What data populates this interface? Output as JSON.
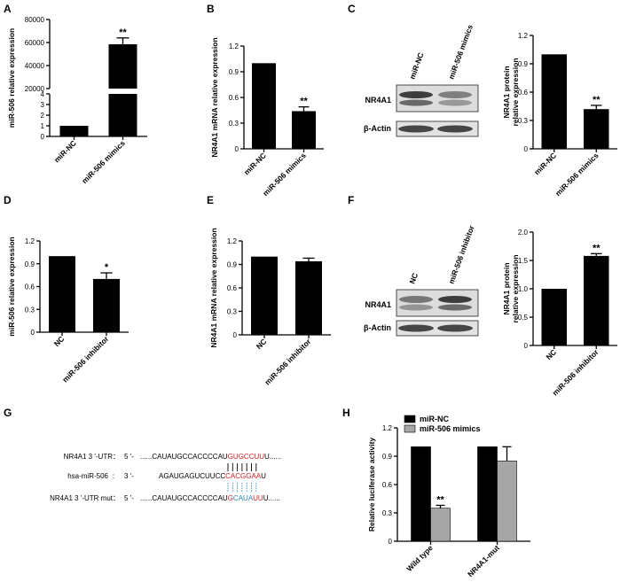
{
  "panel_letters": [
    "A",
    "B",
    "C",
    "D",
    "E",
    "F",
    "G",
    "H"
  ],
  "colors": {
    "bar": "#000000",
    "mimics_bar": "#a6a6a6",
    "seed_red": "#d62020",
    "mut_blue": "#2e86c1"
  },
  "blots": {
    "C": {
      "lanes": [
        "miR-NC",
        "miR-506 mimics"
      ],
      "bands": [
        "NR4A1",
        "β-Actin"
      ]
    },
    "F": {
      "lanes": [
        "NC",
        "miR-506 inhibitor"
      ],
      "bands": [
        "NR4A1",
        "β-Actin"
      ]
    }
  },
  "sequences": {
    "rows": [
      {
        "label": "NR4A1 3 '-UTR：",
        "prime": "5 '-",
        "pre": "......CAUAUGCCACCCCAU",
        "hl": "GUGCCUU",
        "post": "U......"
      },
      {
        "label": "hsa-miR-506",
        "prime": "3 '-",
        "pre": "AGAUGAGUCUUCC",
        "hl": "CACGGAA",
        "post": "U"
      },
      {
        "label": "NR4A1 3 '-UTR  mut：",
        "prime": "5 '-",
        "pre": "......CAUAUGCCACCCCAU",
        "mut": [
          "G",
          "CAUA",
          "UU"
        ],
        "post": "U......"
      }
    ],
    "colon": ":"
  },
  "chart_data": [
    {
      "id": "A",
      "type": "bar",
      "categories": [
        "miR-NC",
        "miR-506 mimics"
      ],
      "values": [
        1,
        58500
      ],
      "errors": [
        0,
        5500
      ],
      "significance": [
        "",
        "**"
      ],
      "ylabel": "miR-506 relative expression",
      "axis_break": {
        "lower": [
          0,
          4
        ],
        "upper": [
          20000,
          80000
        ]
      },
      "lower_ticks": [
        0,
        1,
        2,
        3,
        4
      ],
      "upper_ticks": [
        20000,
        40000,
        60000,
        80000
      ],
      "tick_labels_lower": [
        "0",
        "1",
        "2",
        "3",
        "4"
      ],
      "tick_labels_upper": [
        "20000",
        "40000",
        "60000",
        "80000"
      ]
    },
    {
      "id": "B",
      "type": "bar",
      "categories": [
        "miR-NC",
        "miR-506 mimics"
      ],
      "values": [
        1.0,
        0.44
      ],
      "errors": [
        0,
        0.05
      ],
      "significance": [
        "",
        "**"
      ],
      "ylabel": "NR4A1 mRNA relative expression",
      "ylim": [
        0,
        1.2
      ],
      "yticks": [
        0,
        0.3,
        0.6,
        0.9,
        1.2
      ],
      "tick_labels": [
        "0",
        "0.3",
        "0.6",
        "0.9",
        "1.2"
      ]
    },
    {
      "id": "C",
      "type": "bar",
      "categories": [
        "miR-NC",
        "miR-506 mimics"
      ],
      "values": [
        1.0,
        0.42
      ],
      "errors": [
        0,
        0.04
      ],
      "significance": [
        "",
        "**"
      ],
      "ylabel": [
        "NR4A1 protein",
        "relative expression"
      ],
      "ylim": [
        0,
        1.2
      ],
      "yticks": [
        0,
        0.3,
        0.6,
        0.9,
        1.2
      ],
      "tick_labels": [
        "0",
        "0.3",
        "0.6",
        "0.9",
        "1.2"
      ]
    },
    {
      "id": "D",
      "type": "bar",
      "categories": [
        "NC",
        "miR-506 inhibitor"
      ],
      "values": [
        1.0,
        0.7
      ],
      "errors": [
        0,
        0.08
      ],
      "significance": [
        "",
        "*"
      ],
      "ylabel": "miR-506 relative expression",
      "ylim": [
        0,
        1.2
      ],
      "yticks": [
        0,
        0.3,
        0.6,
        0.9,
        1.2
      ],
      "tick_labels": [
        "0",
        "0.3",
        "0.6",
        "0.9",
        "1.2"
      ]
    },
    {
      "id": "E",
      "type": "bar",
      "categories": [
        "NC",
        "miR-506 inhibitor"
      ],
      "values": [
        1.0,
        0.94
      ],
      "errors": [
        0,
        0.04
      ],
      "significance": [
        "",
        ""
      ],
      "ylabel": "NR4A1 mRNA relative expression",
      "ylim": [
        0,
        1.2
      ],
      "yticks": [
        0,
        0.3,
        0.6,
        0.9,
        1.2
      ],
      "tick_labels": [
        "0",
        "0.3",
        "0.6",
        "0.9",
        "1.2"
      ]
    },
    {
      "id": "F",
      "type": "bar",
      "categories": [
        "NC",
        "miR-506 inhibitor"
      ],
      "values": [
        1.0,
        1.58
      ],
      "errors": [
        0,
        0.04
      ],
      "significance": [
        "",
        "**"
      ],
      "ylabel": [
        "NR4A1 protein",
        "relative expression"
      ],
      "ylim": [
        0,
        2.0
      ],
      "yticks": [
        0,
        0.5,
        1.0,
        1.5,
        2.0
      ],
      "tick_labels": [
        "0",
        "0.5",
        "1.0",
        "1.5",
        "2.0"
      ]
    },
    {
      "id": "H",
      "type": "bar",
      "categories": [
        "Wild type",
        "NR4A1-mut"
      ],
      "series": [
        {
          "name": "miR-NC",
          "values": [
            1.0,
            1.0
          ],
          "errors": [
            0,
            0
          ]
        },
        {
          "name": "miR-506 mimics",
          "values": [
            0.35,
            0.85
          ],
          "errors": [
            0.03,
            0.15
          ]
        }
      ],
      "significance": [
        [
          "",
          "**"
        ],
        [
          "",
          ""
        ]
      ],
      "ylabel": "Relative luciferase activity",
      "ylim": [
        0,
        1.2
      ],
      "yticks": [
        0,
        0.3,
        0.6,
        0.9,
        1.2
      ],
      "tick_labels": [
        "0",
        "0.3",
        "0.6",
        "0.9",
        "1.2"
      ],
      "legend": "top-left"
    }
  ]
}
